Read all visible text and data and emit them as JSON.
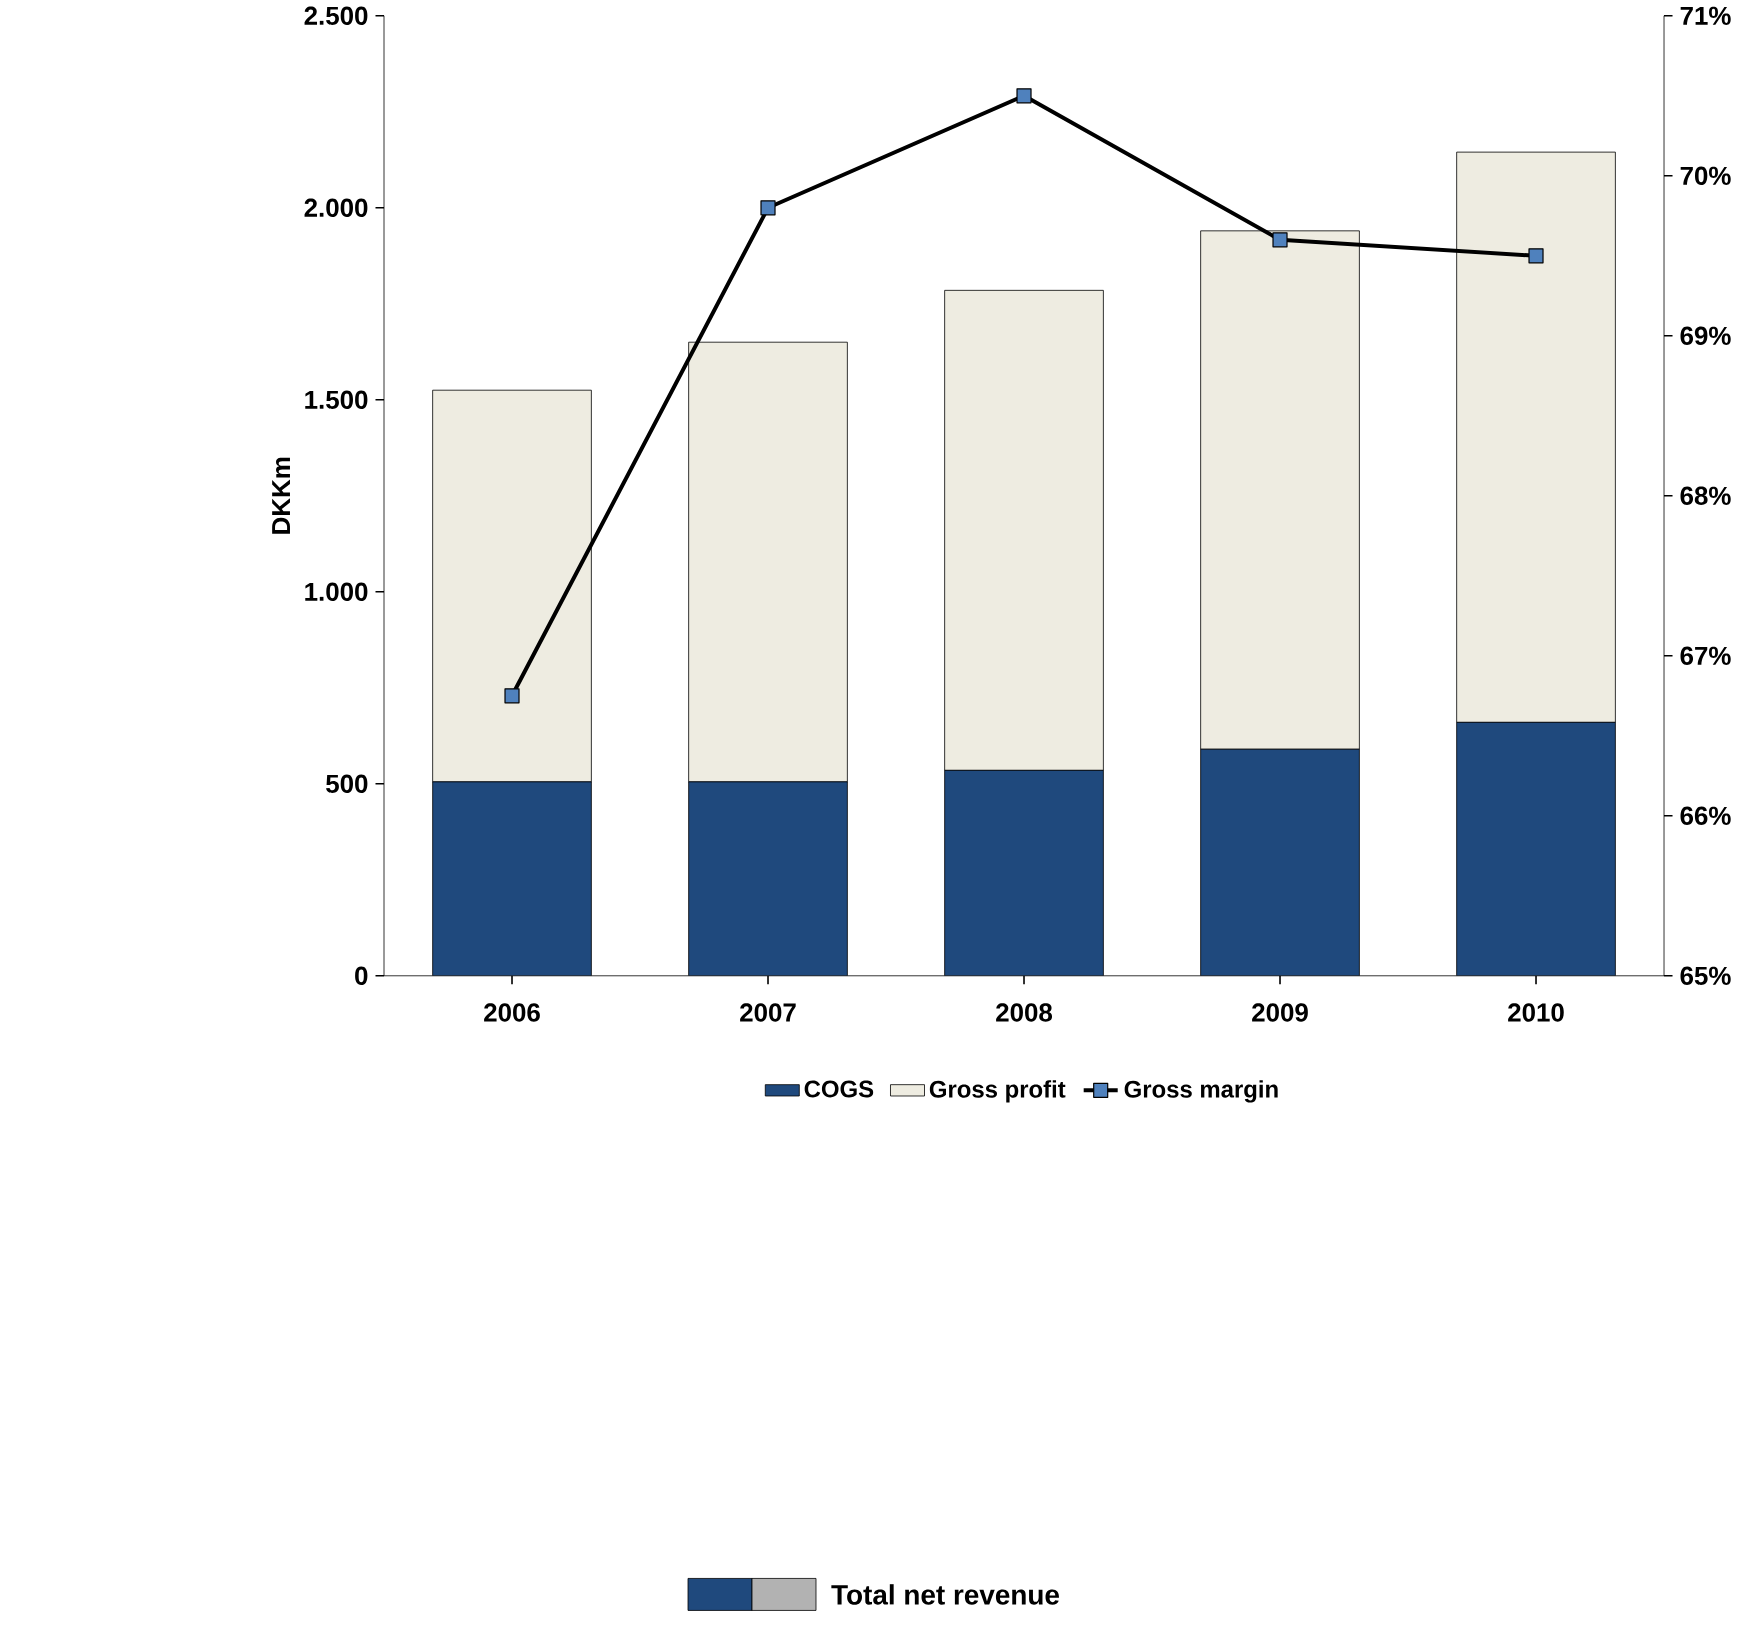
{
  "chart_data": {
    "type": "bar",
    "stacked": true,
    "ylabel": "DKKm",
    "categories": [
      "2006",
      "2007",
      "2008",
      "2009",
      "2010"
    ],
    "series": [
      {
        "name": "COGS",
        "color": "#1f497d",
        "values": [
          505,
          505,
          535,
          590,
          660
        ]
      },
      {
        "name": "Gross profit",
        "color": "#eeece1",
        "values": [
          1020,
          1145,
          1250,
          1350,
          1485
        ]
      },
      {
        "name": "Gross margin",
        "type": "line",
        "axis": "y2",
        "color": "#000000",
        "values": [
          66.75,
          69.8,
          70.5,
          69.6,
          69.5
        ]
      }
    ],
    "ylim": [
      0,
      2500
    ],
    "yticks": [
      0,
      500,
      {
        "value": 1000,
        "label": "1.000"
      },
      {
        "value": 1500,
        "label": "1.500"
      },
      {
        "value": 2000,
        "label": "2.000"
      },
      {
        "value": 2500,
        "label": "2.500"
      }
    ],
    "y2lim": [
      65,
      71
    ],
    "y2ticks": [
      {
        "value": 65,
        "label": "65%"
      },
      {
        "value": 66,
        "label": "66%"
      },
      {
        "value": 67,
        "label": "67%"
      },
      {
        "value": 68,
        "label": "68%"
      },
      {
        "value": 69,
        "label": "69%"
      },
      {
        "value": 70,
        "label": "70%"
      },
      {
        "value": 71,
        "label": "71%"
      }
    ],
    "marker": "square",
    "legend": "bottom",
    "grid": false,
    "annotations": [
      "Total net revenue"
    ]
  }
}
